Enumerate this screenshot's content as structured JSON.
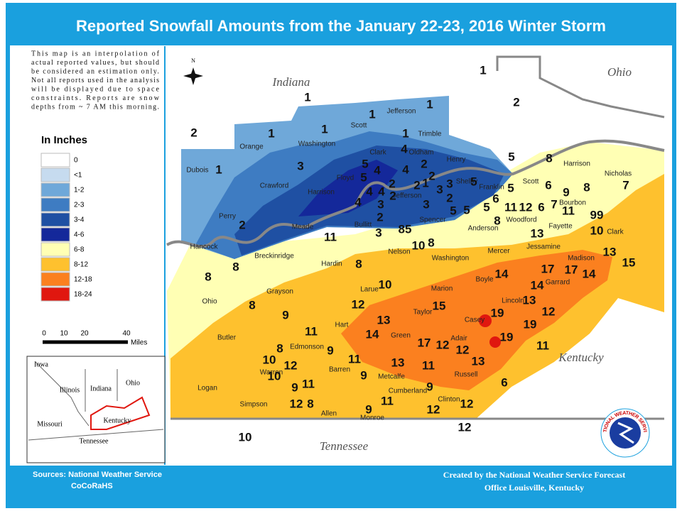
{
  "title": "Reported Snowfall Amounts from the January 22-23, 2016 Winter Storm",
  "note": [
    "This map is an interpolation of",
    "actual reported values, but should",
    "be considered an estimation only.",
    "Not all reports used in the analysis",
    "will be displayed due to space",
    "constraints.  Reports are snow",
    "depths from ~ 7 AM this morning."
  ],
  "compass": "N",
  "legend": {
    "title": "In Inches",
    "items": [
      {
        "label": "0",
        "color": "#ffffff"
      },
      {
        "label": "<1",
        "color": "#c6dbef"
      },
      {
        "label": "1-2",
        "color": "#6fa8d9"
      },
      {
        "label": "2-3",
        "color": "#3e7cc2"
      },
      {
        "label": "3-4",
        "color": "#1f50a3"
      },
      {
        "label": "4-6",
        "color": "#14289a"
      },
      {
        "label": "6-8",
        "color": "#ffffb4"
      },
      {
        "label": "8-12",
        "color": "#fec12e"
      },
      {
        "label": "12-18",
        "color": "#fb801f"
      },
      {
        "label": "18-24",
        "color": "#e0170f"
      }
    ]
  },
  "scale": {
    "ticks": [
      "0",
      "10",
      "20",
      "40"
    ],
    "unit": "Miles"
  },
  "states": [
    "Indiana",
    "Ohio",
    "Kentucky",
    "Tennessee"
  ],
  "counties": [
    "Jefferson",
    "Scott",
    "Trimble",
    "Orange",
    "Washington",
    "Clark",
    "Oldham",
    "Henry",
    "Dubois",
    "Crawford",
    "Harrison",
    "Floyd",
    "Jefferson",
    "Shelby",
    "Franklin",
    "Scott",
    "Harrison",
    "Nicholas",
    "Bourbon",
    "Perry",
    "Meade",
    "Bullitt",
    "Spencer",
    "Anderson",
    "Woodford",
    "Fayette",
    "Clark",
    "Hancock",
    "Breckinridge",
    "Nelson",
    "Washington",
    "Mercer",
    "Jessamine",
    "Madison",
    "Hardin",
    "Ohio",
    "Grayson",
    "Larue",
    "Marion",
    "Boyle",
    "Garrard",
    "Lincoln",
    "Taylor",
    "Casey",
    "Hart",
    "Green",
    "Adair",
    "Butler",
    "Edmonson",
    "Warren",
    "Barren",
    "Metcalfe",
    "Russell",
    "Logan",
    "Cumberland",
    "Clinton",
    "Simpson",
    "Allen",
    "Monroe"
  ],
  "reports": [
    1,
    1,
    1,
    1,
    2,
    2,
    1,
    1,
    1,
    4,
    5,
    1,
    3,
    5,
    4,
    4,
    2,
    2,
    3,
    3,
    5,
    5,
    8,
    6,
    7,
    8,
    9,
    6,
    7,
    11,
    5,
    4,
    2,
    4,
    2,
    1,
    4,
    3,
    2,
    3,
    2,
    5,
    5,
    6,
    5,
    11,
    12,
    99,
    2,
    2,
    3,
    85,
    11,
    8,
    13,
    10,
    10,
    8,
    13,
    15,
    8,
    8,
    8,
    17,
    17,
    14,
    14,
    14,
    10,
    8,
    9,
    12,
    15,
    13,
    12,
    19,
    19,
    19,
    13,
    14,
    11,
    17,
    12,
    11,
    12,
    9,
    11,
    10,
    8,
    12,
    10,
    13,
    11,
    13,
    9,
    6,
    9,
    11,
    12,
    8,
    11,
    9,
    12,
    12,
    9,
    12,
    10
  ],
  "inset": [
    "Iowa",
    "Illinois",
    "Indiana",
    "Ohio",
    "Missouri",
    "Kentucky",
    "Tennessee"
  ],
  "footer": {
    "sources": [
      "Sources:  National Weather Service",
      "CoCoRaHS"
    ],
    "credit": [
      "Created by the National Weather Service Forecast",
      "Office Louisville, Kentucky"
    ]
  },
  "logo": "NATIONAL WEATHER SERVICE"
}
